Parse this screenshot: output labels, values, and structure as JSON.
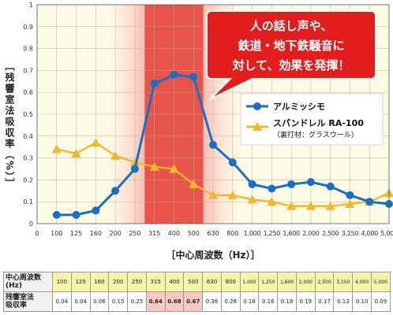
{
  "chart_data": {
    "type": "line",
    "ylabel": "［残響室法吸収率（%）］",
    "xlabel": "［中心周波数（Hz）］",
    "ylim": [
      0,
      1
    ],
    "y_ticks": [
      "0",
      "0.1",
      "0.2",
      "0.3",
      "0.4",
      "0.5",
      "0.6",
      "0.7",
      "0.8",
      "0.9",
      "1"
    ],
    "x_tick_labels": [
      "0",
      "100",
      "125",
      "160",
      "200",
      "250",
      "315",
      "400",
      "500",
      "630",
      "800",
      "1,000",
      "1,250",
      "1,600",
      "2,000",
      "2,500",
      "3,150",
      "4,000",
      "5,000"
    ],
    "categories": [
      "100",
      "125",
      "160",
      "200",
      "250",
      "315",
      "400",
      "500",
      "630",
      "800",
      "1,000",
      "1,250",
      "1,600",
      "2,000",
      "2,500",
      "3,150",
      "4,000",
      "5,000"
    ],
    "highlight_band": [
      "315",
      "500"
    ],
    "series": [
      {
        "name": "アルミッシモ",
        "color": "#1a6fc0",
        "marker": "circle",
        "values": [
          0.04,
          0.04,
          0.06,
          0.15,
          0.25,
          0.64,
          0.68,
          0.67,
          0.36,
          0.28,
          0.18,
          0.16,
          0.18,
          0.19,
          0.17,
          0.13,
          0.1,
          0.09
        ]
      },
      {
        "name": "スパンドレル RA-100",
        "name_sub": "（裏打材：グラスウール）",
        "color": "#f2b72c",
        "marker": "triangle",
        "values": [
          0.34,
          0.32,
          0.37,
          0.31,
          0.28,
          0.26,
          0.25,
          0.18,
          0.13,
          0.13,
          0.11,
          0.1,
          0.08,
          0.08,
          0.08,
          0.09,
          0.1,
          0.14
        ]
      }
    ],
    "legend_position": "right-middle",
    "grid": true,
    "callout": [
      "人の話し声や、",
      "鉄道・地下鉄騒音に",
      "対して、効果を発揮！"
    ]
  },
  "table": {
    "row1_label": [
      "中心周波数",
      "(Hz)"
    ],
    "row2_label": [
      "残響室法",
      "吸収率"
    ],
    "freqs": [
      "100",
      "125",
      "160",
      "200",
      "250",
      "315",
      "400",
      "500",
      "630",
      "800",
      "1,000",
      "1,250",
      "1,600",
      "2,000",
      "2,500",
      "3,150",
      "4,000",
      "5,000"
    ],
    "values": [
      "0.04",
      "0.04",
      "0.06",
      "0.15",
      "0.25",
      "0.64",
      "0.68",
      "0.67",
      "0.36",
      "0.28",
      "0.18",
      "0.16",
      "0.18",
      "0.19",
      "0.17",
      "0.13",
      "0.10",
      "0.09"
    ],
    "highlight_indices": [
      5,
      6,
      7
    ]
  }
}
